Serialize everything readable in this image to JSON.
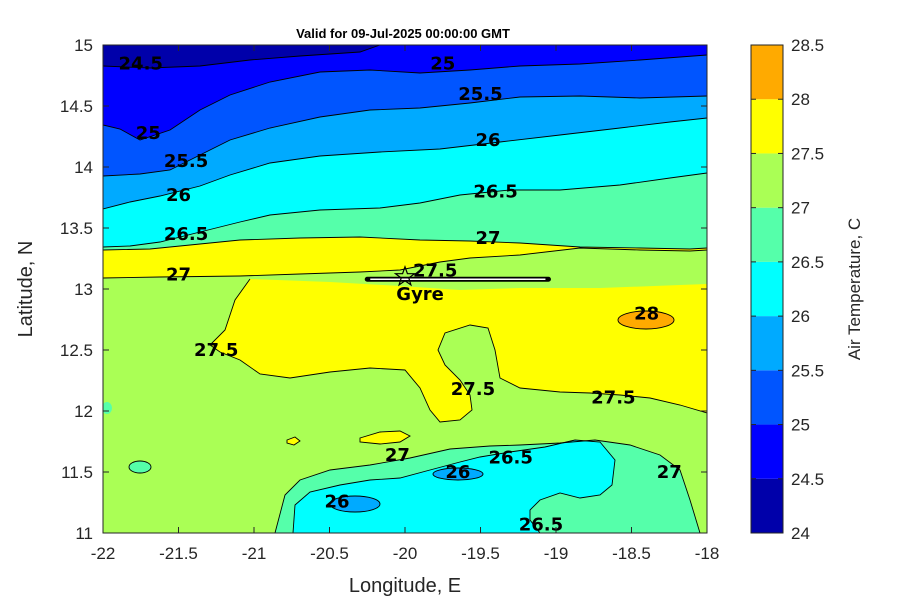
{
  "chart_data": {
    "type": "heatmap",
    "subtype": "filled-contour",
    "title": "Valid for 09-Jul-2025 00:00:00 GMT",
    "xlabel": "Longitude, E",
    "ylabel": "Latitude, N",
    "xlim": [
      -22,
      -18
    ],
    "ylim": [
      11,
      15
    ],
    "x_ticks": [
      "-22",
      "-21.5",
      "-21",
      "-20.5",
      "-20",
      "-19.5",
      "-19",
      "-18.5",
      "-18"
    ],
    "y_ticks": [
      "11",
      "11.5",
      "12",
      "12.5",
      "13",
      "13.5",
      "14",
      "14.5",
      "15"
    ],
    "colorbar": {
      "label": "Air Temperature, C",
      "range": [
        24,
        28.5
      ],
      "levels": [
        24,
        24.5,
        25,
        25.5,
        26,
        26.5,
        27,
        27.5,
        28,
        28.5
      ],
      "tick_labels": [
        "24",
        "24.5",
        "25",
        "25.5",
        "26",
        "26.5",
        "27",
        "27.5",
        "28",
        "28.5"
      ],
      "colors": [
        "#0000aa",
        "#0000ff",
        "#0055ff",
        "#00aaff",
        "#00ffff",
        "#55ffaa",
        "#aaff55",
        "#ffff00",
        "#ffaa00",
        "#ff5500"
      ]
    },
    "contour_labels": [
      {
        "text": "24.5",
        "lon": -21.75,
        "lat": 14.85
      },
      {
        "text": "25",
        "lon": -19.75,
        "lat": 14.85
      },
      {
        "text": "25.5",
        "lon": -19.5,
        "lat": 14.6
      },
      {
        "text": "26",
        "lon": -19.45,
        "lat": 14.22
      },
      {
        "text": "26.5",
        "lon": -19.4,
        "lat": 13.8
      },
      {
        "text": "27",
        "lon": -19.45,
        "lat": 13.42
      },
      {
        "text": "25",
        "lon": -21.7,
        "lat": 14.28
      },
      {
        "text": "25.5",
        "lon": -21.45,
        "lat": 14.05
      },
      {
        "text": "26",
        "lon": -21.5,
        "lat": 13.77
      },
      {
        "text": "26.5",
        "lon": -21.45,
        "lat": 13.45
      },
      {
        "text": "27",
        "lon": -21.5,
        "lat": 13.12
      },
      {
        "text": "27.5",
        "lon": -19.8,
        "lat": 13.15
      },
      {
        "text": "27.5",
        "lon": -21.25,
        "lat": 12.5
      },
      {
        "text": "27.5",
        "lon": -19.55,
        "lat": 12.18
      },
      {
        "text": "27.5",
        "lon": -18.62,
        "lat": 12.11
      },
      {
        "text": "28",
        "lon": -18.4,
        "lat": 12.8
      },
      {
        "text": "27",
        "lon": -20.05,
        "lat": 11.64
      },
      {
        "text": "26.5",
        "lon": -19.3,
        "lat": 11.62
      },
      {
        "text": "26",
        "lon": -19.65,
        "lat": 11.5
      },
      {
        "text": "26",
        "lon": -20.45,
        "lat": 11.26
      },
      {
        "text": "26.5",
        "lon": -19.1,
        "lat": 11.07
      },
      {
        "text": "27",
        "lon": -18.25,
        "lat": 11.5
      }
    ],
    "annotations": [
      {
        "text": "Gyre",
        "lon": -19.9,
        "lat": 12.96,
        "marker": "star",
        "marker_lon": -20,
        "marker_lat": 13.1,
        "track": {
          "lon_start": -20.25,
          "lon_end": -19.05,
          "lat": 13.08
        }
      }
    ],
    "grid": false,
    "legend": "colorbar-right"
  }
}
